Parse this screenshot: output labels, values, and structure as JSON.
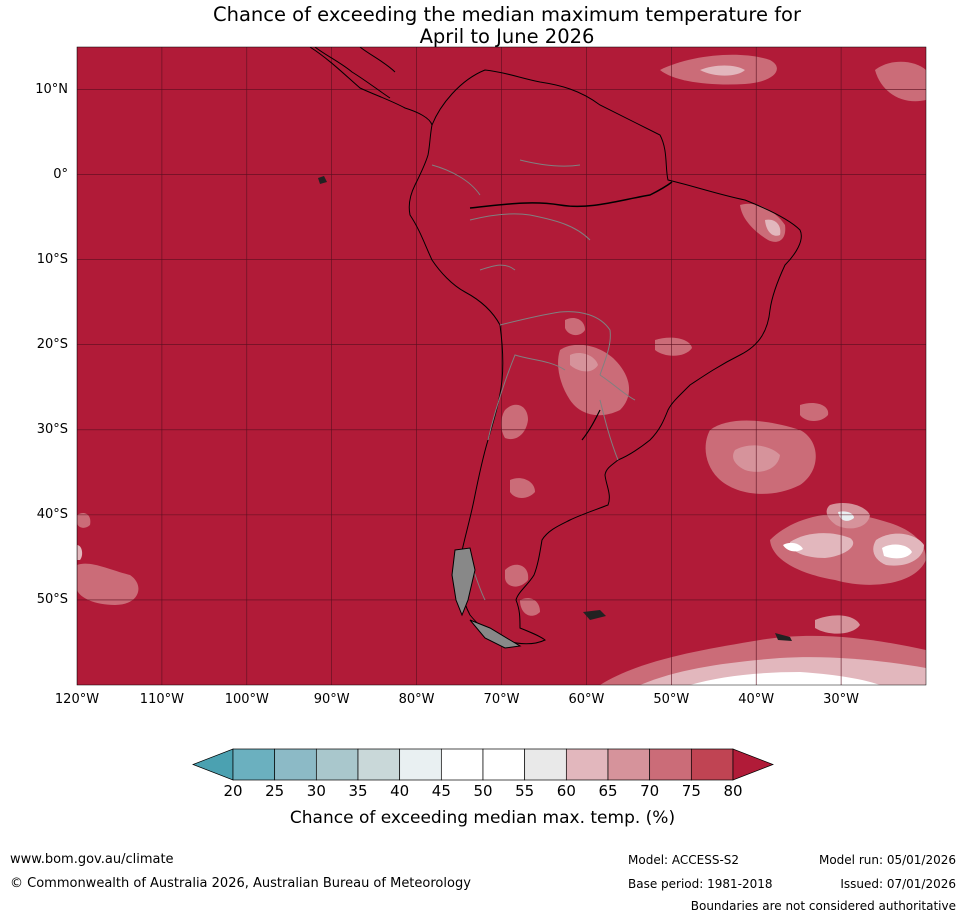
{
  "title": {
    "line1": "Chance of exceeding the median maximum temperature for",
    "line2": "April to June 2026"
  },
  "map": {
    "region": "South America",
    "lat_labels": [
      "10°N",
      "0°",
      "10°S",
      "20°S",
      "30°S",
      "40°S",
      "50°S"
    ],
    "lat_values": [
      10,
      0,
      -10,
      -20,
      -30,
      -40,
      -50
    ],
    "lon_labels": [
      "120°W",
      "110°W",
      "100°W",
      "90°W",
      "80°W",
      "70°W",
      "60°W",
      "50°W",
      "40°W",
      "30°W"
    ],
    "lon_values": [
      -120,
      -110,
      -100,
      -90,
      -80,
      -70,
      -60,
      -50,
      -40,
      -30
    ],
    "extent": {
      "lon": [
        -120,
        -20
      ],
      "lat": [
        -60,
        15
      ]
    },
    "dominant_category": "80+",
    "gridlines": true,
    "colors": {
      "ocean_land_fill": "#b11b38",
      "coast": "#000000",
      "borders": "#808080",
      "grid": "#5a0f1f"
    }
  },
  "colorbar": {
    "label": "Chance of exceeding median max. temp. (%)",
    "ticks": [
      "20",
      "25",
      "30",
      "35",
      "40",
      "45",
      "50",
      "55",
      "60",
      "65",
      "70",
      "75",
      "80"
    ],
    "colors": [
      "#4ba1b1",
      "#6bb0bf",
      "#8cbac6",
      "#a9c7cc",
      "#c9d8d9",
      "#e9f0f2",
      "#ffffff",
      "#ffffff",
      "#e9e9e9",
      "#e2b7bd",
      "#d6939b",
      "#cb6c78",
      "#c04453",
      "#b11b38"
    ],
    "extend": "both"
  },
  "footer": {
    "website": "www.bom.gov.au/climate",
    "copyright": "© Commonwealth of Australia 2026, Australian Bureau of Meteorology",
    "model": "Model: ACCESS-S2",
    "base_period": "Base period: 1981-2018",
    "model_run": "Model run: 05/01/2026",
    "issued": "Issued: 07/01/2026",
    "disclaimer": "Boundaries are not considered authoritative"
  }
}
